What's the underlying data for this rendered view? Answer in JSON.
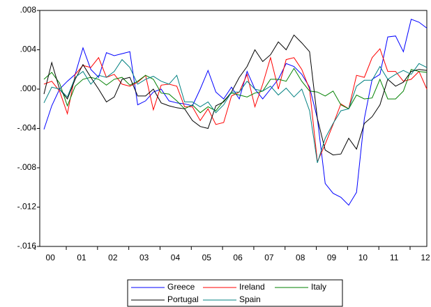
{
  "chart_data": {
    "type": "line",
    "categories": [
      null,
      "00",
      null,
      null,
      null,
      "01",
      null,
      null,
      null,
      "02",
      null,
      null,
      null,
      "03",
      null,
      null,
      null,
      "04",
      null,
      null,
      null,
      "05",
      null,
      null,
      null,
      "06",
      null,
      null,
      null,
      "07",
      null,
      null,
      null,
      "08",
      null,
      null,
      null,
      "09",
      null,
      null,
      null,
      "10",
      null,
      null,
      null,
      "11",
      null,
      null,
      null,
      "12"
    ],
    "ylim": [
      -0.016,
      0.008
    ],
    "yticks": [
      {
        "value": -0.016,
        "label": "-.016"
      },
      {
        "value": -0.012,
        "label": "-.012"
      },
      {
        "value": -0.008,
        "label": "-.008"
      },
      {
        "value": -0.004,
        "label": "-.004"
      },
      {
        "value": 0,
        "label": ".000"
      },
      {
        "value": 0.004,
        "label": ".004"
      },
      {
        "value": 0.008,
        "label": ".008"
      }
    ],
    "legend": "bottom",
    "series": [
      {
        "name": "Greece",
        "color": "#0000ff",
        "values": [
          -0.0041,
          -0.0017,
          0.0,
          0.0008,
          0.0015,
          0.0042,
          0.002,
          0.0012,
          0.0037,
          0.0034,
          0.0036,
          0.0038,
          -0.0016,
          -0.0012,
          -0.0003,
          0.0,
          -0.0012,
          -0.0014,
          -0.0015,
          -0.0017,
          0.0,
          0.0019,
          -0.0003,
          -0.001,
          0.0002,
          -0.001,
          0.0018,
          0.0,
          -0.001,
          0.0,
          0.001,
          0.0026,
          0.0023,
          0.0015,
          0.0002,
          -0.003,
          -0.0096,
          -0.0106,
          -0.011,
          -0.0118,
          -0.0105,
          -0.003,
          0.001,
          0.0015,
          0.0053,
          0.0054,
          0.0038,
          0.0071,
          0.0068,
          0.0062
        ]
      },
      {
        "name": "Ireland",
        "color": "#ff0000",
        "values": [
          0.0005,
          0.0008,
          -0.0002,
          -0.0025,
          0.0015,
          0.0024,
          0.0022,
          0.0032,
          0.0012,
          0.0015,
          0.0005,
          0.0003,
          0.0007,
          0.0014,
          -0.0021,
          0.0004,
          0.0005,
          0.0003,
          -0.0018,
          -0.0018,
          -0.0032,
          -0.002,
          -0.0036,
          -0.0034,
          -0.0007,
          -0.0003,
          0.0015,
          -0.0018,
          0.0005,
          0.0032,
          0.0,
          0.003,
          0.0032,
          0.002,
          0.0,
          -0.0074,
          -0.0056,
          -0.0036,
          -0.0015,
          -0.002,
          0.0014,
          0.0012,
          0.0032,
          0.0041,
          0.0018,
          0.0018,
          0.0008,
          0.001,
          0.0018,
          0.0
        ]
      },
      {
        "name": "Italy",
        "color": "#008000",
        "values": [
          0.001,
          0.0017,
          0.0006,
          -0.0017,
          0.0003,
          0.001,
          0.0012,
          0.001,
          0.0004,
          0.001,
          0.0012,
          0.0004,
          0.0008,
          0.0014,
          0.001,
          -0.0004,
          -0.0005,
          -0.0012,
          -0.002,
          -0.0016,
          -0.0024,
          -0.0018,
          -0.0022,
          -0.0012,
          -0.0004,
          -0.0006,
          -0.0008,
          -0.0004,
          -0.0002,
          0.001,
          0.001,
          0.0008,
          0.0021,
          0.0008,
          -0.0002,
          -0.0003,
          -0.0007,
          -0.0002,
          -0.0016,
          -0.002,
          -0.0006,
          -0.001,
          -0.0009,
          0.001,
          -0.001,
          -0.001,
          -0.0002,
          0.002,
          0.0018,
          0.0017
        ]
      },
      {
        "name": "Portugal",
        "color": "#000000",
        "values": [
          -0.0005,
          0.0027,
          0.0,
          -0.001,
          0.001,
          0.0025,
          0.0012,
          0.0,
          -0.0013,
          -0.0008,
          0.001,
          0.0012,
          -0.0007,
          -0.0007,
          0.0,
          -0.0014,
          -0.0017,
          -0.0019,
          -0.002,
          -0.0032,
          -0.0038,
          -0.004,
          -0.0017,
          -0.0013,
          -0.0003,
          0.0012,
          0.0023,
          0.004,
          0.0028,
          0.0035,
          0.0048,
          0.004,
          0.0055,
          0.0047,
          0.0038,
          -0.003,
          -0.0062,
          -0.0067,
          -0.0066,
          -0.005,
          -0.0061,
          -0.0035,
          -0.0028,
          -0.0016,
          0.001,
          0.0003,
          0.0007,
          0.0018,
          0.002,
          0.0019
        ]
      },
      {
        "name": "Spain",
        "color": "#008080",
        "values": [
          -0.0014,
          0.0002,
          0.0,
          -0.0008,
          0.0012,
          0.0018,
          0.0005,
          0.0014,
          0.0012,
          0.0018,
          0.003,
          0.0022,
          0.0005,
          0.001,
          0.0013,
          0.0008,
          0.0005,
          0.0014,
          -0.0013,
          -0.0013,
          -0.0018,
          -0.0013,
          -0.0024,
          -0.0016,
          -0.0003,
          -0.0003,
          0.0008,
          0.0,
          -0.0002,
          0.0003,
          -0.0006,
          0.0001,
          -0.0008,
          0.0,
          -0.0022,
          -0.0075,
          -0.005,
          -0.0035,
          -0.0022,
          -0.002,
          0.0003,
          0.0009,
          0.0009,
          0.0023,
          0.001,
          0.0015,
          0.0019,
          0.0015,
          0.0026,
          0.0022
        ]
      }
    ]
  }
}
